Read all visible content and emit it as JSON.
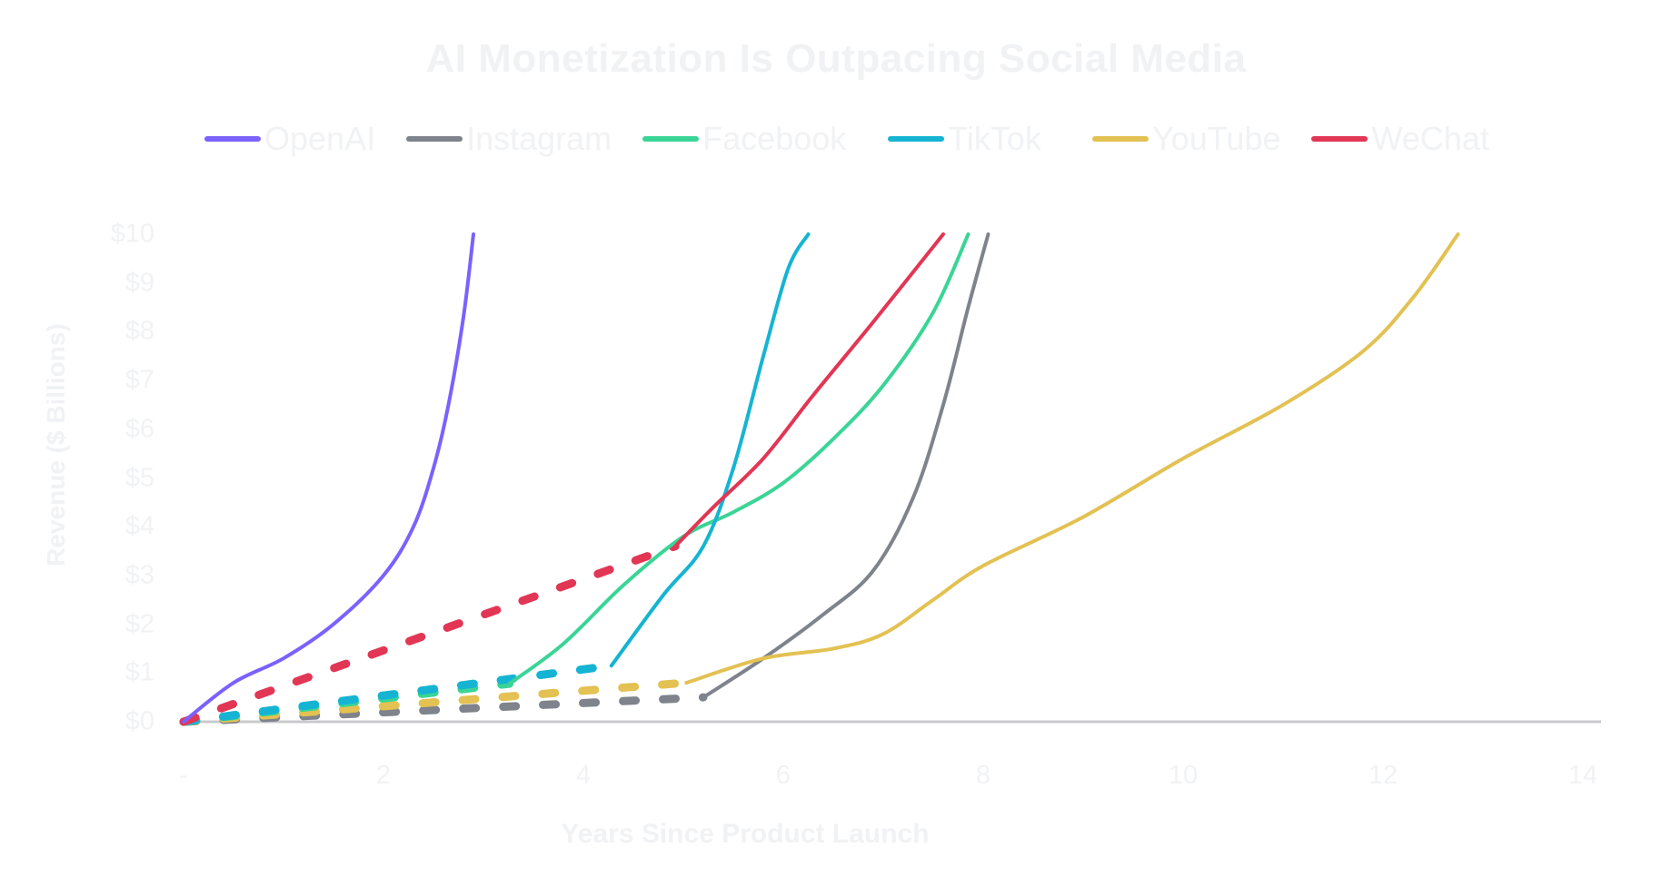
{
  "title": "AI Monetization Is Outpacing Social Media",
  "legend": [
    {
      "label": "OpenAI",
      "color": "#7b61ff"
    },
    {
      "label": "Instagram",
      "color": "#7e838c"
    },
    {
      "label": "Facebook",
      "color": "#3ad596"
    },
    {
      "label": "TikTok",
      "color": "#15b4d3"
    },
    {
      "label": "YouTube",
      "color": "#e3c152"
    },
    {
      "label": "WeChat",
      "color": "#e23655"
    }
  ],
  "axes": {
    "ylabel": "Revenue ($ Billions)",
    "xlabel": "Years Since Product Launch",
    "yticks": [
      "$0",
      "$1",
      "$2",
      "$3",
      "$4",
      "$5",
      "$6",
      "$7",
      "$8",
      "$9",
      "$10"
    ],
    "xticks": [
      "-",
      "2",
      "4",
      "6",
      "8",
      "10",
      "12",
      "14"
    ]
  },
  "chart_data": {
    "type": "line",
    "title": "AI Monetization Is Outpacing Social Media",
    "xlabel": "Years Since Product Launch",
    "ylabel": "Revenue ($ Billions)",
    "xlim": [
      0,
      14
    ],
    "ylim": [
      0,
      10
    ],
    "grid": false,
    "legend_position": "top",
    "series": [
      {
        "name": "OpenAI",
        "color": "#7b61ff",
        "dashed": [],
        "solid": [
          [
            0,
            0
          ],
          [
            0.5,
            0.8
          ],
          [
            1,
            1.3
          ],
          [
            1.5,
            2.0
          ],
          [
            2,
            3.0
          ],
          [
            2.3,
            4.0
          ],
          [
            2.5,
            5.2
          ],
          [
            2.65,
            6.5
          ],
          [
            2.8,
            8.3
          ],
          [
            2.9,
            10
          ]
        ]
      },
      {
        "name": "Instagram",
        "color": "#7e838c",
        "dashed": [
          [
            0,
            0
          ],
          [
            5.2,
            0.5
          ]
        ],
        "solid": [
          [
            5.2,
            0.5
          ],
          [
            5.8,
            1.3
          ],
          [
            6.4,
            2.2
          ],
          [
            6.9,
            3.1
          ],
          [
            7.3,
            4.6
          ],
          [
            7.6,
            6.5
          ],
          [
            7.85,
            8.5
          ],
          [
            8.05,
            10
          ]
        ]
      },
      {
        "name": "Facebook",
        "color": "#3ad596",
        "dashed": [
          [
            0,
            0
          ],
          [
            3.26,
            0.78
          ]
        ],
        "solid": [
          [
            3.26,
            0.78
          ],
          [
            3.8,
            1.6
          ],
          [
            4.4,
            2.8
          ],
          [
            5.0,
            3.8
          ],
          [
            5.5,
            4.3
          ],
          [
            6.0,
            4.9
          ],
          [
            6.5,
            5.8
          ],
          [
            7.0,
            6.9
          ],
          [
            7.5,
            8.4
          ],
          [
            7.85,
            10
          ]
        ]
      },
      {
        "name": "TikTok",
        "color": "#15b4d3",
        "dashed": [
          [
            0,
            0
          ],
          [
            4.28,
            1.15
          ]
        ],
        "solid": [
          [
            4.28,
            1.15
          ],
          [
            4.8,
            2.6
          ],
          [
            5.2,
            3.6
          ],
          [
            5.5,
            5.2
          ],
          [
            5.8,
            7.5
          ],
          [
            6.05,
            9.3
          ],
          [
            6.25,
            10
          ]
        ]
      },
      {
        "name": "YouTube",
        "color": "#e3c152",
        "dashed": [
          [
            0,
            0
          ],
          [
            5.03,
            0.8
          ]
        ],
        "solid": [
          [
            5.03,
            0.8
          ],
          [
            5.8,
            1.3
          ],
          [
            6.5,
            1.5
          ],
          [
            7.0,
            1.8
          ],
          [
            7.5,
            2.5
          ],
          [
            8.0,
            3.2
          ],
          [
            9.0,
            4.2
          ],
          [
            10.0,
            5.4
          ],
          [
            11.0,
            6.5
          ],
          [
            11.8,
            7.6
          ],
          [
            12.3,
            8.7
          ],
          [
            12.75,
            10
          ]
        ]
      },
      {
        "name": "WeChat",
        "color": "#e23655",
        "dashed": [
          [
            0,
            0
          ],
          [
            4.92,
            3.6
          ]
        ],
        "solid": [
          [
            4.92,
            3.6
          ],
          [
            5.3,
            4.4
          ],
          [
            5.8,
            5.4
          ],
          [
            6.3,
            6.7
          ],
          [
            6.9,
            8.2
          ],
          [
            7.6,
            10
          ]
        ]
      }
    ]
  }
}
